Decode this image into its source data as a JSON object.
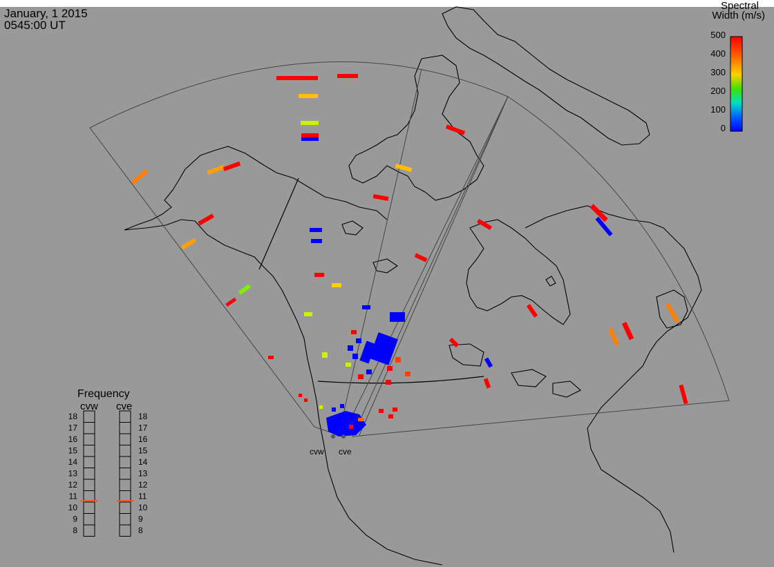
{
  "header": {
    "date": "January, 1 2015",
    "time": "0545:00 UT"
  },
  "colorbar": {
    "title_line1": "Spectral",
    "title_line2": "Width (m/s)",
    "ticks": [
      "500",
      "400",
      "300",
      "200",
      "100",
      "0"
    ],
    "range": [
      0,
      500
    ],
    "colors": [
      "#ff0000",
      "#ff8000",
      "#ffd000",
      "#a0f000",
      "#10e010",
      "#10e0c0",
      "#00a0ff",
      "#0000ff"
    ]
  },
  "frequency_panel": {
    "title": "Frequency",
    "radar_left": "cvw",
    "radar_right": "cve",
    "scale": [
      "18",
      "17",
      "16",
      "15",
      "14",
      "13",
      "12",
      "11",
      "10",
      "9",
      "8"
    ],
    "cvw_freq": 10.6,
    "cve_freq": 10.6,
    "marker_color": "#ff5020"
  },
  "radars": {
    "site_left": "cvw",
    "site_right": "cve"
  },
  "map": {
    "background": "#999999",
    "coast_color": "#000000"
  }
}
